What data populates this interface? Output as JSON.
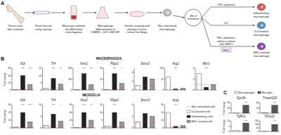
{
  "figure": {
    "panel_a_label": "A",
    "panel_b_label": "B",
    "panel_c_label": "C"
  },
  "diagram": {
    "steps": [
      {
        "lines": [
          "Femur and",
          "tibia isolation"
        ]
      },
      {
        "lines": [
          "Flush marrow",
          "using syringe"
        ]
      },
      {
        "lines": [
          "Monocyte isolation",
          "by differential",
          "centrifugation"
        ]
      },
      {
        "lines": [
          "Macrophage",
          "differentiation in",
          "DMEM + 10% GMCSF"
        ]
      },
      {
        "lines": [
          "Gentle scraping and",
          "plating in tissue",
          "culture for 3days"
        ]
      }
    ],
    "resting": {
      "lines": [
        "Non stimulated",
        "macrophage"
      ]
    },
    "stimulation": {
      "lines": [
        "48h of",
        "stimulation"
      ]
    },
    "branches": [
      {
        "stimulus": [
          "TH1 cytokines"
        ],
        "result": [
          "Inflammatory",
          "macrophage"
        ],
        "color": "#d9534f"
      },
      {
        "stimulus": [
          "IL4"
        ],
        "result": [
          "IL4-treated",
          "macrophage"
        ],
        "color": "#4a90c8"
      },
      {
        "stimulus": [
          "TH1 cytokines+",
          "indirect culture",
          "with MSCs"
        ],
        "result": [
          "MSC-treated",
          "macrophage"
        ],
        "color": "#8e44ad",
        "extra": "MSC"
      }
    ]
  },
  "panel_b": {
    "macrophages_title": "MACROPHAGES",
    "microglia_title": "MICROGLIA",
    "legend": [
      {
        "name": "Non stimulated cells",
        "color": "#e03030",
        "line_style": "dashed"
      },
      {
        "name": "IL4-treated cells",
        "color": "#ffffff"
      },
      {
        "name": "Inflammatory cells",
        "color": "#222222"
      },
      {
        "name": "MSC-treated cells",
        "color": "#999999"
      }
    ]
  },
  "panel_c": {
    "legend": [
      {
        "name": "Macrophages",
        "color": "#ffffff"
      },
      {
        "name": "Microglia",
        "color": "#555555"
      }
    ]
  },
  "chart_data": [
    {
      "type": "bar",
      "title": "Il1b",
      "y_label": "Fold change",
      "categories": [
        null,
        null,
        null
      ],
      "values": [
        1.5,
        40,
        15
      ],
      "colors": [
        "#ffffff",
        "#222222",
        "#999999"
      ],
      "reference": 1,
      "ylim": [
        0,
        60
      ],
      "yticks": [
        0,
        20,
        40,
        60
      ],
      "annotations": [
        "***",
        "***"
      ]
    },
    {
      "type": "bar",
      "title": "Tnf",
      "categories": [
        null,
        null,
        null
      ],
      "values": [
        1,
        8,
        4
      ],
      "colors": [
        "#ffffff",
        "#222222",
        "#999999"
      ],
      "reference": 1,
      "ylim": [
        0,
        15
      ],
      "yticks": [
        0,
        5,
        10,
        15
      ],
      "annotations": [
        "***",
        "**"
      ]
    },
    {
      "type": "bar",
      "title": "Nos2",
      "categories": [
        null,
        null,
        null
      ],
      "values": [
        2,
        150,
        50
      ],
      "colors": [
        "#ffffff",
        "#222222",
        "#999999"
      ],
      "reference": 1,
      "ylim": [
        0,
        200
      ],
      "yticks": [
        0,
        100,
        200
      ],
      "annotations": [
        "***",
        "***"
      ]
    },
    {
      "type": "bar",
      "title": "Ptgs2",
      "categories": [
        null,
        null,
        null
      ],
      "values": [
        1,
        30,
        12
      ],
      "colors": [
        "#ffffff",
        "#222222",
        "#999999"
      ],
      "reference": 1,
      "ylim": [
        0,
        40
      ],
      "yticks": [
        0,
        20,
        40
      ],
      "annotations": [
        "***",
        "*"
      ]
    },
    {
      "type": "bar",
      "title": "Socs3",
      "categories": [
        null,
        null,
        null
      ],
      "values": [
        1,
        3,
        2.5
      ],
      "colors": [
        "#ffffff",
        "#222222",
        "#999999"
      ],
      "reference": 1,
      "ylim": [
        0,
        5
      ],
      "yticks": [
        0,
        2,
        4
      ],
      "annotations": []
    },
    {
      "type": "bar",
      "title": "Arg1",
      "categories": [
        null,
        null,
        null
      ],
      "values": [
        60,
        5,
        8
      ],
      "colors": [
        "#ffffff",
        "#222222",
        "#999999"
      ],
      "reference": 1,
      "ylim": [
        0,
        100
      ],
      "yticks": [
        0,
        50,
        100
      ],
      "annotations": [
        "***"
      ]
    },
    {
      "type": "bar",
      "title": "Mrc1",
      "categories": [
        null,
        null,
        null
      ],
      "values": [
        3,
        0.5,
        1
      ],
      "colors": [
        "#ffffff",
        "#222222",
        "#999999"
      ],
      "reference": 1,
      "ylim": [
        0,
        4
      ],
      "yticks": [
        0,
        2,
        4
      ],
      "annotations": [
        "***"
      ]
    },
    {
      "type": "bar",
      "title": "Il1b",
      "y_label": "Fold change",
      "categories": [
        null,
        null,
        null
      ],
      "values": [
        1,
        20,
        8
      ],
      "colors": [
        "#ffffff",
        "#222222",
        "#999999"
      ],
      "reference": 1,
      "ylim": [
        0,
        30
      ],
      "yticks": [
        0,
        10,
        20,
        30
      ],
      "annotations": [
        "***",
        "***"
      ]
    },
    {
      "type": "bar",
      "title": "Tnf",
      "categories": [
        null,
        null,
        null
      ],
      "values": [
        1,
        6,
        3
      ],
      "colors": [
        "#ffffff",
        "#222222",
        "#999999"
      ],
      "reference": 1,
      "ylim": [
        0,
        10
      ],
      "yticks": [
        0,
        5,
        10
      ],
      "annotations": [
        "***",
        "*"
      ]
    },
    {
      "type": "bar",
      "title": "Nos2",
      "categories": [
        null,
        null,
        null
      ],
      "values": [
        1,
        40,
        20
      ],
      "colors": [
        "#ffffff",
        "#222222",
        "#999999"
      ],
      "reference": 1,
      "ylim": [
        0,
        60
      ],
      "yticks": [
        0,
        20,
        40,
        60
      ],
      "annotations": [
        "***",
        "**"
      ]
    },
    {
      "type": "bar",
      "title": "Ptgs2",
      "categories": [
        null,
        null,
        null
      ],
      "values": [
        1,
        10,
        4
      ],
      "colors": [
        "#ffffff",
        "#222222",
        "#999999"
      ],
      "reference": 1,
      "ylim": [
        0,
        15
      ],
      "yticks": [
        0,
        5,
        10,
        15
      ],
      "annotations": [
        "***"
      ]
    },
    {
      "type": "bar",
      "title": "Socs3",
      "categories": [
        null,
        null,
        null
      ],
      "values": [
        1,
        2.5,
        2
      ],
      "colors": [
        "#ffffff",
        "#222222",
        "#999999"
      ],
      "reference": 1,
      "ylim": [
        0,
        4
      ],
      "yticks": [
        0,
        2,
        4
      ],
      "annotations": []
    },
    {
      "type": "bar",
      "title": "Arg1",
      "categories": [
        null,
        null,
        null
      ],
      "values": [
        20,
        2,
        3
      ],
      "colors": [
        "#ffffff",
        "#222222",
        "#999999"
      ],
      "reference": 1,
      "ylim": [
        0,
        30
      ],
      "yticks": [
        0,
        10,
        20,
        30
      ],
      "annotations": [
        "***"
      ]
    },
    {
      "type": "bar",
      "title": "Gpr34",
      "y_label": "Fold change",
      "categories": [
        null,
        null
      ],
      "values": [
        1,
        60
      ],
      "colors": [
        "#ffffff",
        "#555555"
      ],
      "ylim": [
        0,
        80
      ],
      "yticks": [
        0,
        40,
        80
      ],
      "annotations": [
        "***"
      ]
    },
    {
      "type": "bar",
      "title": "Tmem119",
      "categories": [
        null,
        null
      ],
      "values": [
        1,
        30
      ],
      "colors": [
        "#ffffff",
        "#555555"
      ],
      "ylim": [
        0,
        40
      ],
      "yticks": [
        0,
        20,
        40
      ],
      "annotations": [
        "***"
      ]
    },
    {
      "type": "bar",
      "title": "Tgfbr1",
      "y_label": "Fold change",
      "categories": [
        null,
        null
      ],
      "values": [
        1,
        8
      ],
      "colors": [
        "#ffffff",
        "#555555"
      ],
      "ylim": [
        0,
        10
      ],
      "yticks": [
        0,
        5,
        10
      ],
      "annotations": [
        "***"
      ]
    },
    {
      "type": "bar",
      "title": "P2ry12",
      "categories": [
        null,
        null
      ],
      "values": [
        1,
        100
      ],
      "colors": [
        "#ffffff",
        "#555555"
      ],
      "ylim": [
        0,
        150
      ],
      "yticks": [
        0,
        50,
        100,
        150
      ],
      "annotations": [
        "***"
      ]
    }
  ]
}
